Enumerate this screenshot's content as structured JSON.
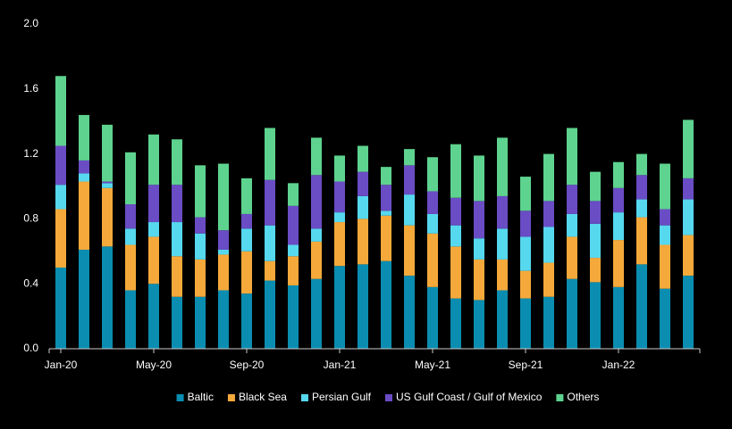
{
  "chart_data": {
    "type": "stacked_bar",
    "categories": [
      "Jan-20",
      null,
      null,
      null,
      "May-20",
      null,
      null,
      null,
      "Sep-20",
      null,
      null,
      null,
      "Jan-21",
      null,
      null,
      null,
      "May-21",
      null,
      null,
      null,
      "Sep-21",
      null,
      null,
      null,
      "Jan-22",
      null,
      null,
      null
    ],
    "series": [
      {
        "name": "Baltic",
        "color": "#0a8db0",
        "values": [
          0.5,
          0.61,
          0.63,
          0.36,
          0.4,
          0.32,
          0.32,
          0.36,
          0.34,
          0.42,
          0.39,
          0.43,
          0.51,
          0.52,
          0.54,
          0.45,
          0.38,
          0.31,
          0.3,
          0.36,
          0.31,
          0.32,
          0.43,
          0.41,
          0.38,
          0.52,
          0.37,
          0.45
        ]
      },
      {
        "name": "Black Sea",
        "color": "#f5a93a",
        "values": [
          0.36,
          0.42,
          0.36,
          0.28,
          0.29,
          0.25,
          0.23,
          0.22,
          0.26,
          0.12,
          0.18,
          0.23,
          0.27,
          0.28,
          0.28,
          0.31,
          0.33,
          0.32,
          0.25,
          0.19,
          0.17,
          0.21,
          0.26,
          0.15,
          0.29,
          0.29,
          0.27,
          0.25
        ]
      },
      {
        "name": "Persian Gulf",
        "color": "#56d8ef",
        "values": [
          0.15,
          0.05,
          0.03,
          0.1,
          0.09,
          0.21,
          0.16,
          0.03,
          0.14,
          0.22,
          0.07,
          0.08,
          0.06,
          0.14,
          0.03,
          0.19,
          0.12,
          0.13,
          0.13,
          0.19,
          0.21,
          0.22,
          0.14,
          0.21,
          0.17,
          0.11,
          0.12,
          0.22
        ]
      },
      {
        "name": "US Gulf Coast / Gulf of Mexico",
        "color": "#6a4cc4",
        "values": [
          0.24,
          0.08,
          0.01,
          0.15,
          0.23,
          0.23,
          0.1,
          0.12,
          0.09,
          0.28,
          0.24,
          0.33,
          0.19,
          0.15,
          0.16,
          0.18,
          0.14,
          0.17,
          0.23,
          0.2,
          0.16,
          0.16,
          0.18,
          0.14,
          0.15,
          0.15,
          0.1,
          0.13
        ]
      },
      {
        "name": "Others",
        "color": "#5ed38f",
        "values": [
          0.43,
          0.28,
          0.35,
          0.32,
          0.31,
          0.28,
          0.32,
          0.41,
          0.22,
          0.32,
          0.14,
          0.23,
          0.16,
          0.16,
          0.11,
          0.1,
          0.21,
          0.33,
          0.28,
          0.36,
          0.21,
          0.29,
          0.35,
          0.18,
          0.16,
          0.13,
          0.28,
          0.36
        ]
      }
    ],
    "ylim": [
      0,
      2.0
    ],
    "yticks": [
      {
        "value": 0,
        "label": "0.0"
      },
      {
        "value": 0.4,
        "label": "0.4"
      },
      {
        "value": 0.8,
        "label": "0.8"
      },
      {
        "value": 1.2,
        "label": "1.2"
      },
      {
        "value": 1.6,
        "label": "1.6"
      },
      {
        "value": 2.0,
        "label": "2.0"
      }
    ],
    "grid": false,
    "legend": "bottom"
  }
}
